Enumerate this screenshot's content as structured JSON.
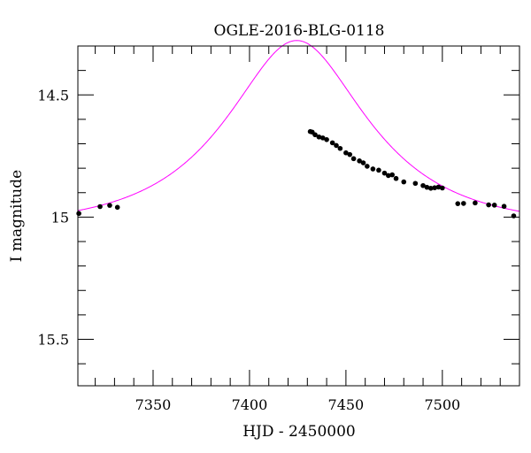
{
  "chart_data": {
    "type": "scatter",
    "title": "OGLE-2016-BLG-0118",
    "xlabel": "HJD - 2450000",
    "ylabel": "I magnitude",
    "xlim": [
      7311,
      7540
    ],
    "ylim": [
      15.69,
      14.3
    ],
    "y_inverted": true,
    "x_major_ticks": [
      7350,
      7400,
      7450,
      7500
    ],
    "x_tick_labels": [
      "7350",
      "7400",
      "7450",
      "7500"
    ],
    "x_minor_step": 10,
    "y_major_ticks": [
      14.5,
      15,
      15.5
    ],
    "y_tick_labels": [
      "14.5",
      "15",
      "15.5"
    ],
    "y_minor_step": 0.1,
    "grid": false,
    "legend": "none",
    "colors": {
      "model": "#ff00ff",
      "points": "#000000",
      "axes": "#000000"
    },
    "model": {
      "kind": "paczynski-microlensing-fit",
      "t0": 7424.5,
      "u0": 0.55,
      "tE": 60,
      "baseline_mag": 15.04
    },
    "points": [
      {
        "x": 7311.5,
        "y": 14.985
      },
      {
        "x": 7322.5,
        "y": 14.957
      },
      {
        "x": 7327.5,
        "y": 14.952
      },
      {
        "x": 7331.5,
        "y": 14.96
      },
      {
        "x": 7431.5,
        "y": 14.65
      },
      {
        "x": 7432.5,
        "y": 14.652
      },
      {
        "x": 7434,
        "y": 14.663
      },
      {
        "x": 7436,
        "y": 14.672
      },
      {
        "x": 7438,
        "y": 14.676
      },
      {
        "x": 7440,
        "y": 14.683
      },
      {
        "x": 7443,
        "y": 14.696
      },
      {
        "x": 7445,
        "y": 14.707
      },
      {
        "x": 7447,
        "y": 14.719
      },
      {
        "x": 7450,
        "y": 14.737
      },
      {
        "x": 7452,
        "y": 14.744
      },
      {
        "x": 7454,
        "y": 14.761
      },
      {
        "x": 7457,
        "y": 14.77
      },
      {
        "x": 7459,
        "y": 14.778
      },
      {
        "x": 7461,
        "y": 14.792
      },
      {
        "x": 7464,
        "y": 14.803
      },
      {
        "x": 7467,
        "y": 14.808
      },
      {
        "x": 7470,
        "y": 14.82
      },
      {
        "x": 7472,
        "y": 14.83
      },
      {
        "x": 7474,
        "y": 14.827
      },
      {
        "x": 7476,
        "y": 14.842
      },
      {
        "x": 7480,
        "y": 14.856
      },
      {
        "x": 7486,
        "y": 14.862
      },
      {
        "x": 7490,
        "y": 14.871
      },
      {
        "x": 7492,
        "y": 14.878
      },
      {
        "x": 7494,
        "y": 14.882
      },
      {
        "x": 7496,
        "y": 14.88
      },
      {
        "x": 7498,
        "y": 14.877
      },
      {
        "x": 7500,
        "y": 14.881
      },
      {
        "x": 7508,
        "y": 14.945
      },
      {
        "x": 7511,
        "y": 14.944
      },
      {
        "x": 7517,
        "y": 14.942
      },
      {
        "x": 7524,
        "y": 14.95
      },
      {
        "x": 7527,
        "y": 14.951
      },
      {
        "x": 7532,
        "y": 14.956
      },
      {
        "x": 7537,
        "y": 14.995
      }
    ]
  }
}
